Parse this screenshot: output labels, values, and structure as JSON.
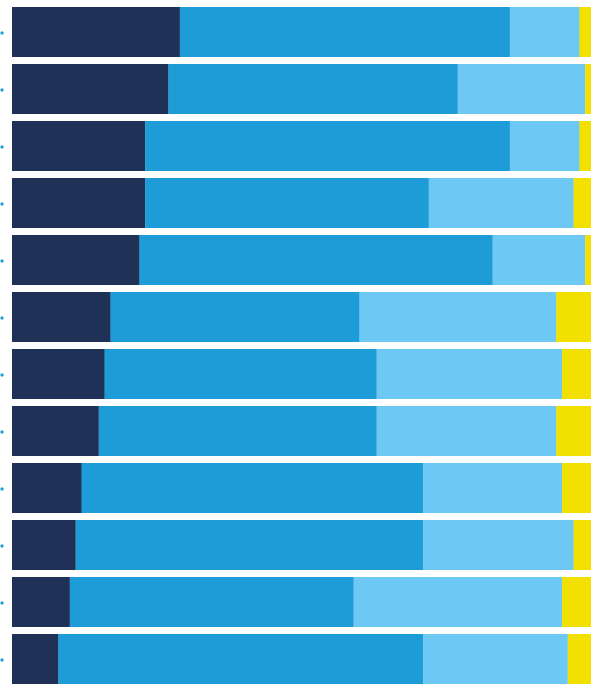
{
  "chart_data": {
    "type": "stacked-bar-horizontal",
    "categories": [
      null,
      null,
      null,
      null,
      null,
      null,
      null,
      null,
      null,
      null,
      null,
      null
    ],
    "xlim": [
      0,
      100
    ],
    "series": [
      {
        "color": "#1f3157",
        "values": [
          29,
          27,
          23,
          23,
          22,
          17,
          16,
          15,
          12,
          11,
          10,
          8
        ]
      },
      {
        "color": "#1e9cd7",
        "values": [
          57,
          50,
          63,
          49,
          61,
          43,
          47,
          48,
          59,
          60,
          49,
          63
        ]
      },
      {
        "color": "#6dc8f3",
        "values": [
          12,
          22,
          12,
          25,
          16,
          34,
          32,
          31,
          24,
          26,
          36,
          25
        ]
      },
      {
        "color": "#f2e000",
        "values": [
          2,
          1,
          2,
          3,
          1,
          6,
          5,
          6,
          5,
          3,
          5,
          4
        ]
      }
    ]
  }
}
